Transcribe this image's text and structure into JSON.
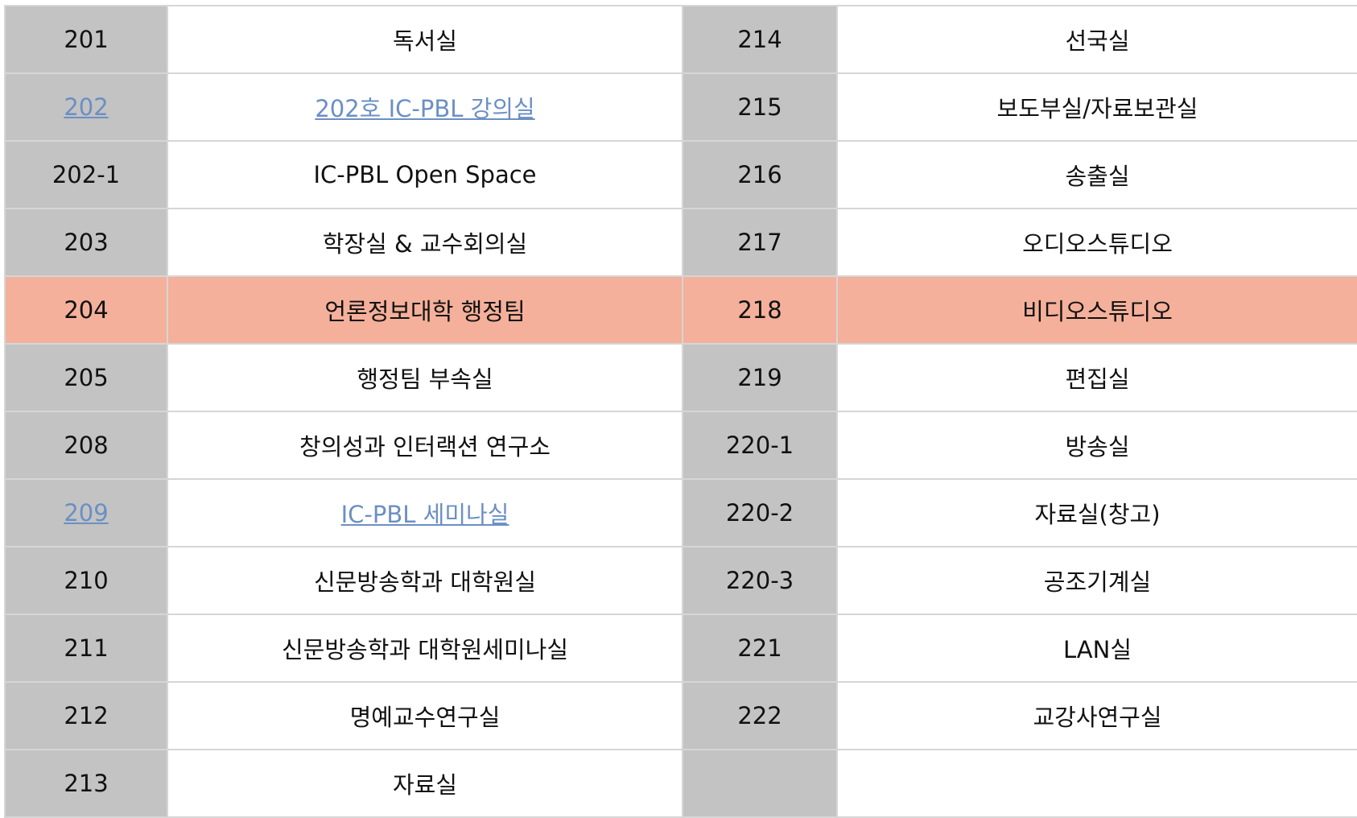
{
  "rooms": {
    "rows": [
      {
        "left_num": "201",
        "left_name": "독서실",
        "right_num": "214",
        "right_name": "선국실"
      },
      {
        "left_num": "202",
        "left_name": "202호 IC-PBL 강의실",
        "right_num": "215",
        "right_name": "보도부실/자료보관실",
        "left_link": true
      },
      {
        "left_num": "202-1",
        "left_name": "IC-PBL Open Space",
        "right_num": "216",
        "right_name": "송출실"
      },
      {
        "left_num": "203",
        "left_name": "학장실 & 교수회의실",
        "right_num": "217",
        "right_name": "오디오스튜디오"
      },
      {
        "left_num": "204",
        "left_name": "언론정보대학 행정팀",
        "right_num": "218",
        "right_name": "비디오스튜디오",
        "highlight": true
      },
      {
        "left_num": "205",
        "left_name": "행정팀 부속실",
        "right_num": "219",
        "right_name": "편집실"
      },
      {
        "left_num": "208",
        "left_name": "창의성과 인터랙션 연구소",
        "right_num": "220-1",
        "right_name": "방송실"
      },
      {
        "left_num": "209",
        "left_name": "IC-PBL 세미나실",
        "right_num": "220-2",
        "right_name": "자료실(창고)",
        "left_link": true
      },
      {
        "left_num": "210",
        "left_name": "신문방송학과 대학원실",
        "right_num": "220-3",
        "right_name": "공조기계실"
      },
      {
        "left_num": "211",
        "left_name": "신문방송학과 대학원세미나실",
        "right_num": "221",
        "right_name": "LAN실"
      },
      {
        "left_num": "212",
        "left_name": "명예교수연구실",
        "right_num": "222",
        "right_name": "교강사연구실"
      },
      {
        "left_num": "213",
        "left_name": "자료실",
        "right_num": "",
        "right_name": ""
      }
    ]
  },
  "colors": {
    "number_cell_bg": "#c3c3c3",
    "highlight_row_bg": "#f4b09a",
    "link_color": "#6b8fc4",
    "border": "#d6d6d6"
  }
}
